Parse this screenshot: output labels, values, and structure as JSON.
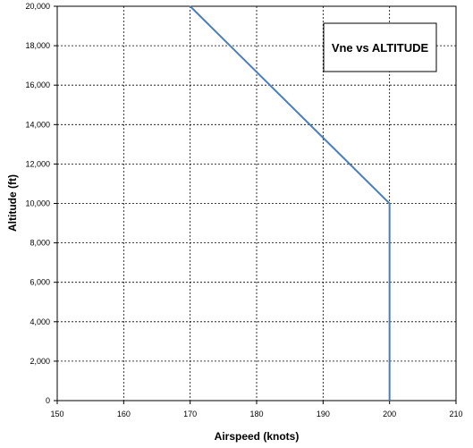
{
  "chart_data": {
    "type": "line",
    "title": "Vne vs ALTITUDE",
    "xlabel": "Airspeed (knots)",
    "ylabel": "Altitude (ft)",
    "xlim": [
      150,
      210
    ],
    "ylim": [
      0,
      20000
    ],
    "x_ticks": [
      "150",
      "160",
      "170",
      "180",
      "190",
      "200",
      "210"
    ],
    "y_ticks": [
      "0",
      "2,000",
      "4,000",
      "6,000",
      "8,000",
      "10,000",
      "12,000",
      "14,000",
      "16,000",
      "18,000",
      "20,000"
    ],
    "grid": true,
    "title_placement": "top-right",
    "series": [
      {
        "color": "#4a7ebb",
        "points": [
          {
            "x": 170,
            "y": 20000
          },
          {
            "x": 200,
            "y": 10000
          },
          {
            "x": 200,
            "y": 0
          }
        ]
      }
    ]
  }
}
